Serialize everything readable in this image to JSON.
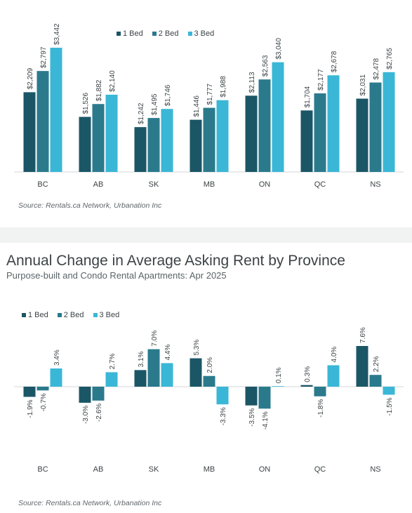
{
  "colors": {
    "bed1": "#1b5666",
    "bed2": "#2a7a8c",
    "bed3": "#3ab7d6"
  },
  "chart_data": [
    {
      "type": "bar",
      "title": "",
      "categories": [
        "BC",
        "AB",
        "SK",
        "MB",
        "ON",
        "QC",
        "NS"
      ],
      "series": [
        {
          "name": "1 Bed",
          "values": [
            2209,
            1526,
            1242,
            1446,
            2113,
            1704,
            2031
          ]
        },
        {
          "name": "2 Bed",
          "values": [
            2797,
            1882,
            1495,
            1777,
            2563,
            2177,
            2478
          ]
        },
        {
          "name": "3 Bed",
          "values": [
            3442,
            2140,
            1746,
            1988,
            3040,
            2678,
            2765
          ]
        }
      ],
      "data_labels": [
        [
          "$2,209",
          "$1,526",
          "$1,242",
          "$1,446",
          "$2,113",
          "$1,704",
          "$2,031"
        ],
        [
          "$2,797",
          "$1,882",
          "$1,495",
          "$1,777",
          "$2,563",
          "$2,177",
          "$2,478"
        ],
        [
          "$3,442",
          "$2,140",
          "$1,746",
          "$1,988",
          "$3,040",
          "$2,678",
          "$2,765"
        ]
      ],
      "ylim": [
        0,
        3442
      ],
      "legend_position": "top-center",
      "grid": false,
      "source": "Source: Rentals.ca Network, Urbanation Inc"
    },
    {
      "type": "bar",
      "title": "Annual Change in Average Asking Rent by Province",
      "subtitle": "Purpose-built and Condo Rental Apartments: Apr 2025",
      "categories": [
        "BC",
        "AB",
        "SK",
        "MB",
        "ON",
        "QC",
        "NS"
      ],
      "series": [
        {
          "name": "1 Bed",
          "values": [
            -1.9,
            -3.0,
            3.1,
            5.3,
            -3.5,
            0.3,
            7.6
          ]
        },
        {
          "name": "2 Bed",
          "values": [
            -0.7,
            -2.6,
            7.0,
            2.0,
            -4.1,
            -1.8,
            2.2
          ]
        },
        {
          "name": "3 Bed",
          "values": [
            3.4,
            2.7,
            4.4,
            -3.3,
            0.1,
            4.0,
            -1.5
          ]
        }
      ],
      "data_labels": [
        [
          "-1.9%",
          "-3.0%",
          "3.1%",
          "5.3%",
          "-3.5%",
          "0.3%",
          "7.6%"
        ],
        [
          "-0.7%",
          "-2.6%",
          "7.0%",
          "2.0%",
          "-4.1%",
          "-1.8%",
          "2.2%"
        ],
        [
          "3.4%",
          "2.7%",
          "4.4%",
          "-3.3%",
          "0.1%",
          "4.0%",
          "-1.5%"
        ]
      ],
      "ylim": [
        -4.1,
        7.6
      ],
      "legend_position": "top-left",
      "grid": false,
      "source": "Source: Rentals.ca Network, Urbanation Inc"
    }
  ]
}
